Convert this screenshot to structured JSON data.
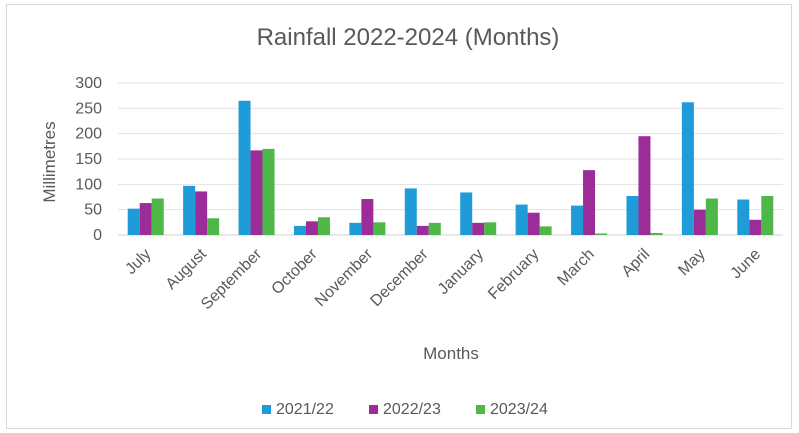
{
  "chart_data": {
    "type": "bar",
    "title": "Rainfall 2022-2024 (Months)",
    "xlabel": "Months",
    "ylabel": "Millimetres",
    "ylim": [
      0,
      300
    ],
    "yticks": [
      0,
      50,
      100,
      150,
      200,
      250,
      300
    ],
    "grid": true,
    "legend_position": "bottom",
    "categories": [
      "July",
      "August",
      "September",
      "October",
      "November",
      "December",
      "January",
      "February",
      "March",
      "April",
      "May",
      "June"
    ],
    "series": [
      {
        "name": "2021/22",
        "color": "#1f9bd7",
        "values": [
          52,
          97,
          265,
          18,
          24,
          92,
          84,
          60,
          58,
          77,
          262,
          70
        ]
      },
      {
        "name": "2022/23",
        "color": "#9b2c98",
        "values": [
          63,
          86,
          167,
          27,
          71,
          18,
          24,
          44,
          128,
          195,
          50,
          30
        ]
      },
      {
        "name": "2023/24",
        "color": "#4db848",
        "values": [
          72,
          33,
          170,
          35,
          25,
          24,
          25,
          17,
          3,
          4,
          72,
          77
        ]
      }
    ]
  }
}
